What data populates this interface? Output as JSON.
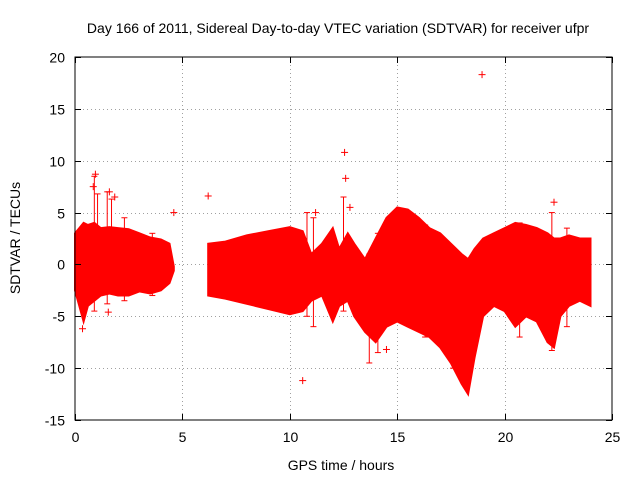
{
  "chart_data": {
    "type": "scatter",
    "title": "Day 166 of 2011, Sidereal Day-to-day VTEC variation (SDTVAR) for receiver ufpr",
    "xlabel": "GPS time / hours",
    "ylabel": "SDTVAR / TECUs",
    "xlim": [
      0,
      25
    ],
    "ylim": [
      -15,
      20
    ],
    "x_ticks": [
      0,
      5,
      10,
      15,
      20,
      25
    ],
    "y_ticks": [
      -15,
      -10,
      -5,
      0,
      5,
      10,
      15,
      20
    ],
    "x_tick_labels": [
      "0",
      "5",
      "10",
      "15",
      "20",
      "25"
    ],
    "y_tick_labels": [
      "-15",
      "-10",
      "-5",
      "0",
      "5",
      "10",
      "15",
      "20"
    ],
    "grid": true,
    "marker": "+",
    "color": "#ff0000",
    "series": [
      {
        "name": "SDTVAR",
        "envelope": [
          {
            "x": 0.0,
            "lo": -2.5,
            "hi": 3.0
          },
          {
            "x": 0.2,
            "lo": -4.0,
            "hi": 3.5
          },
          {
            "x": 0.4,
            "lo": -5.5,
            "hi": 4.0
          },
          {
            "x": 0.6,
            "lo": -4.0,
            "hi": 3.8
          },
          {
            "x": 0.9,
            "lo": -3.5,
            "hi": 4.0
          },
          {
            "x": 1.2,
            "lo": -3.0,
            "hi": 3.5
          },
          {
            "x": 1.6,
            "lo": -2.8,
            "hi": 3.6
          },
          {
            "x": 2.0,
            "lo": -3.0,
            "hi": 3.5
          },
          {
            "x": 2.5,
            "lo": -3.0,
            "hi": 3.4
          },
          {
            "x": 3.0,
            "lo": -2.6,
            "hi": 3.0
          },
          {
            "x": 3.5,
            "lo": -2.8,
            "hi": 2.6
          },
          {
            "x": 4.0,
            "lo": -2.5,
            "hi": 2.4
          },
          {
            "x": 4.4,
            "lo": -1.8,
            "hi": 2.0
          },
          {
            "x": 4.6,
            "lo": -0.6,
            "hi": -0.2
          },
          {
            "x": 6.2,
            "lo": -3.0,
            "hi": 2.0
          },
          {
            "x": 7.0,
            "lo": -3.3,
            "hi": 2.2
          },
          {
            "x": 8.0,
            "lo": -3.8,
            "hi": 2.8
          },
          {
            "x": 9.0,
            "lo": -4.3,
            "hi": 3.2
          },
          {
            "x": 10.0,
            "lo": -4.8,
            "hi": 3.6
          },
          {
            "x": 10.6,
            "lo": -4.5,
            "hi": 3.2
          },
          {
            "x": 11.0,
            "lo": -3.5,
            "hi": 1.0
          },
          {
            "x": 11.5,
            "lo": -3.0,
            "hi": 2.0
          },
          {
            "x": 12.0,
            "lo": -5.5,
            "hi": 3.5
          },
          {
            "x": 12.3,
            "lo": -4.0,
            "hi": 1.5
          },
          {
            "x": 12.7,
            "lo": -3.5,
            "hi": 3.0
          },
          {
            "x": 13.0,
            "lo": -5.0,
            "hi": 2.0
          },
          {
            "x": 13.5,
            "lo": -6.5,
            "hi": 0.5
          },
          {
            "x": 14.0,
            "lo": -7.5,
            "hi": 2.5
          },
          {
            "x": 14.5,
            "lo": -6.0,
            "hi": 4.5
          },
          {
            "x": 15.0,
            "lo": -5.5,
            "hi": 5.5
          },
          {
            "x": 15.5,
            "lo": -6.0,
            "hi": 5.3
          },
          {
            "x": 16.0,
            "lo": -6.5,
            "hi": 4.5
          },
          {
            "x": 16.5,
            "lo": -7.0,
            "hi": 3.5
          },
          {
            "x": 17.0,
            "lo": -8.0,
            "hi": 3.0
          },
          {
            "x": 17.5,
            "lo": -9.5,
            "hi": 2.0
          },
          {
            "x": 18.0,
            "lo": -11.5,
            "hi": 1.0
          },
          {
            "x": 18.3,
            "lo": -12.5,
            "hi": 0.5
          },
          {
            "x": 18.6,
            "lo": -9.0,
            "hi": 1.5
          },
          {
            "x": 19.0,
            "lo": -5.0,
            "hi": 2.5
          },
          {
            "x": 19.5,
            "lo": -4.0,
            "hi": 3.0
          },
          {
            "x": 20.0,
            "lo": -4.5,
            "hi": 3.5
          },
          {
            "x": 20.5,
            "lo": -6.0,
            "hi": 4.0
          },
          {
            "x": 21.0,
            "lo": -5.0,
            "hi": 3.8
          },
          {
            "x": 21.5,
            "lo": -5.5,
            "hi": 3.5
          },
          {
            "x": 22.0,
            "lo": -7.5,
            "hi": 3.0
          },
          {
            "x": 22.3,
            "lo": -8.0,
            "hi": 2.5
          },
          {
            "x": 22.6,
            "lo": -5.0,
            "hi": 2.5
          },
          {
            "x": 23.0,
            "lo": -4.0,
            "hi": 2.8
          },
          {
            "x": 23.5,
            "lo": -3.5,
            "hi": 2.5
          },
          {
            "x": 24.0,
            "lo": -4.0,
            "hi": 2.5
          }
        ],
        "outliers": [
          {
            "x": 0.95,
            "y": 8.7
          },
          {
            "x": 0.85,
            "y": 7.5
          },
          {
            "x": 1.6,
            "y": 7.0
          },
          {
            "x": 1.85,
            "y": 6.5
          },
          {
            "x": 1.55,
            "y": -4.6
          },
          {
            "x": 0.35,
            "y": -6.2
          },
          {
            "x": 4.6,
            "y": 5.0
          },
          {
            "x": 6.2,
            "y": 6.6
          },
          {
            "x": 10.6,
            "y": -11.2
          },
          {
            "x": 12.55,
            "y": 10.8
          },
          {
            "x": 12.6,
            "y": 8.3
          },
          {
            "x": 14.5,
            "y": -8.2
          },
          {
            "x": 15.1,
            "y": -5.0
          },
          {
            "x": 18.95,
            "y": 18.3
          },
          {
            "x": 22.3,
            "y": 6.0
          },
          {
            "x": 11.2,
            "y": 5.0
          },
          {
            "x": 12.8,
            "y": 5.5
          }
        ],
        "error_bars": [
          {
            "x": 0.9,
            "lo": -4.5,
            "hi": 8.5
          },
          {
            "x": 1.05,
            "lo": -3.0,
            "hi": 6.8
          },
          {
            "x": 1.5,
            "lo": -3.8,
            "hi": 7.0
          },
          {
            "x": 1.7,
            "lo": -2.5,
            "hi": 6.3
          },
          {
            "x": 2.3,
            "lo": -3.5,
            "hi": 4.5
          },
          {
            "x": 3.6,
            "lo": -3.0,
            "hi": 3.0
          },
          {
            "x": 10.8,
            "lo": -5.0,
            "hi": 5.0
          },
          {
            "x": 11.1,
            "lo": -6.0,
            "hi": 4.5
          },
          {
            "x": 12.5,
            "lo": -4.5,
            "hi": 6.5
          },
          {
            "x": 13.7,
            "lo": -9.5,
            "hi": 1.0
          },
          {
            "x": 14.1,
            "lo": -8.5,
            "hi": 3.0
          },
          {
            "x": 16.3,
            "lo": -7.0,
            "hi": 3.8
          },
          {
            "x": 17.6,
            "lo": -10.0,
            "hi": 1.5
          },
          {
            "x": 20.7,
            "lo": -7.0,
            "hi": 4.0
          },
          {
            "x": 22.2,
            "lo": -8.3,
            "hi": 5.0
          },
          {
            "x": 22.9,
            "lo": -6.0,
            "hi": 3.5
          }
        ]
      }
    ]
  }
}
